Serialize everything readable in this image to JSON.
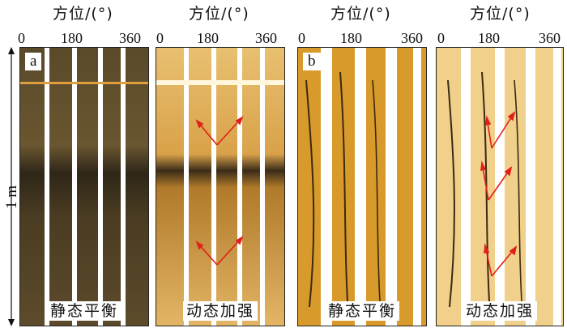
{
  "axis": {
    "title": "方位/(°)",
    "ticks": [
      "0",
      "180",
      "360"
    ]
  },
  "scale": {
    "label": "1 m"
  },
  "panels": [
    {
      "letter": "a",
      "caption": "静态平衡",
      "tone": "dark"
    },
    {
      "letter": "",
      "caption": "动态加强",
      "tone": "bright"
    },
    {
      "letter": "b",
      "caption": "静态平衡",
      "tone": "orange"
    },
    {
      "letter": "",
      "caption": "动态加强",
      "tone": "bright"
    }
  ],
  "colors": {
    "arrow": "#e0201a",
    "dark": "#4a3a1c",
    "orange": "#d89a28",
    "bright": "#f3d694"
  }
}
